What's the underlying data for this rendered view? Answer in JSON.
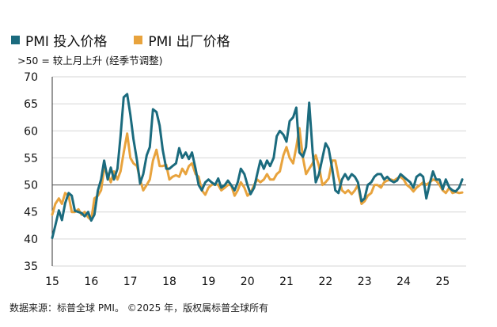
{
  "legend": [
    {
      "label": "PMI 投入价格",
      "color": "#1b6b7e"
    },
    {
      "label": "PMI 出厂价格",
      "color": "#e8a33d"
    }
  ],
  "subtitle": ">50 = 较上月上升 (经季节调整)",
  "source": "数据来源：标普全球 PMI。 ©2025 年，版权属标普全球所有",
  "chart_data": {
    "type": "line",
    "title": "",
    "xlabel": "",
    "ylabel": "",
    "ylim": [
      35,
      70
    ],
    "yticks": [
      35,
      40,
      45,
      50,
      55,
      60,
      65,
      70
    ],
    "xlim": [
      2015.0,
      2025.6
    ],
    "xtick_labels": [
      "15",
      "16",
      "17",
      "18",
      "19",
      "20",
      "21",
      "22",
      "23",
      "24",
      "25"
    ],
    "reference_line": 50,
    "grid": "horizontal",
    "series": [
      {
        "name": "PMI 投入价格",
        "color": "#1b6b7e",
        "x": [
          2015.0,
          2015.08,
          2015.17,
          2015.25,
          2015.33,
          2015.42,
          2015.5,
          2015.58,
          2015.67,
          2015.75,
          2015.83,
          2015.92,
          2016.0,
          2016.08,
          2016.17,
          2016.25,
          2016.33,
          2016.42,
          2016.5,
          2016.58,
          2016.67,
          2016.75,
          2016.83,
          2016.92,
          2017.0,
          2017.08,
          2017.17,
          2017.25,
          2017.33,
          2017.42,
          2017.5,
          2017.58,
          2017.67,
          2017.75,
          2017.83,
          2017.92,
          2018.0,
          2018.08,
          2018.17,
          2018.25,
          2018.33,
          2018.42,
          2018.5,
          2018.58,
          2018.67,
          2018.75,
          2018.83,
          2018.92,
          2019.0,
          2019.08,
          2019.17,
          2019.25,
          2019.33,
          2019.42,
          2019.5,
          2019.58,
          2019.67,
          2019.75,
          2019.83,
          2019.92,
          2020.0,
          2020.08,
          2020.17,
          2020.25,
          2020.33,
          2020.42,
          2020.5,
          2020.58,
          2020.67,
          2020.75,
          2020.83,
          2020.92,
          2021.0,
          2021.08,
          2021.17,
          2021.25,
          2021.33,
          2021.42,
          2021.5,
          2021.58,
          2021.67,
          2021.75,
          2021.83,
          2021.92,
          2022.0,
          2022.08,
          2022.17,
          2022.25,
          2022.33,
          2022.42,
          2022.5,
          2022.58,
          2022.67,
          2022.75,
          2022.83,
          2022.92,
          2023.0,
          2023.08,
          2023.17,
          2023.25,
          2023.33,
          2023.42,
          2023.5,
          2023.58,
          2023.67,
          2023.75,
          2023.83,
          2023.92,
          2024.0,
          2024.08,
          2024.17,
          2024.25,
          2024.33,
          2024.42,
          2024.5,
          2024.58,
          2024.67,
          2024.75,
          2024.83,
          2024.92,
          2025.0,
          2025.08,
          2025.17,
          2025.25,
          2025.33,
          2025.42,
          2025.5
        ],
        "values": [
          40.2,
          42.5,
          45.3,
          43.5,
          46.6,
          48.5,
          48.0,
          45.2,
          45.0,
          44.8,
          44.2,
          45.0,
          43.4,
          44.5,
          49.0,
          51.0,
          54.5,
          51.0,
          53.2,
          51.0,
          53.0,
          59.0,
          66.2,
          66.8,
          63.0,
          58.5,
          54.5,
          50.3,
          52.0,
          55.5,
          57.0,
          64.0,
          63.5,
          61.0,
          56.5,
          53.0,
          53.0,
          53.5,
          54.0,
          56.8,
          55.0,
          56.0,
          54.8,
          56.0,
          53.0,
          50.0,
          49.0,
          50.5,
          51.0,
          50.5,
          50.0,
          51.2,
          49.5,
          50.0,
          50.8,
          50.0,
          49.0,
          50.5,
          53.0,
          52.0,
          50.0,
          48.3,
          49.5,
          52.0,
          54.5,
          53.0,
          54.5,
          53.5,
          55.0,
          59.0,
          60.0,
          59.3,
          58.0,
          61.8,
          62.5,
          64.3,
          56.0,
          55.2,
          57.0,
          65.2,
          56.0,
          50.5,
          52.0,
          55.0,
          57.7,
          56.7,
          53.0,
          49.0,
          48.5,
          51.0,
          52.0,
          51.0,
          52.0,
          51.5,
          50.5,
          47.0,
          47.5,
          50.0,
          50.5,
          51.5,
          52.0,
          52.0,
          51.0,
          51.5,
          50.8,
          50.5,
          50.8,
          52.0,
          51.5,
          51.0,
          50.5,
          49.5,
          51.5,
          52.0,
          51.5,
          47.5,
          50.3,
          52.5,
          51.0,
          51.0,
          49.2,
          51.0,
          49.5,
          49.0,
          48.8,
          49.5,
          51.0
        ]
      },
      {
        "name": "PMI 出厂价格",
        "color": "#e8a33d",
        "x": [
          2015.0,
          2015.08,
          2015.17,
          2015.25,
          2015.33,
          2015.42,
          2015.5,
          2015.58,
          2015.67,
          2015.75,
          2015.83,
          2015.92,
          2016.0,
          2016.08,
          2016.17,
          2016.25,
          2016.33,
          2016.42,
          2016.5,
          2016.58,
          2016.67,
          2016.75,
          2016.83,
          2016.92,
          2017.0,
          2017.08,
          2017.17,
          2017.25,
          2017.33,
          2017.42,
          2017.5,
          2017.58,
          2017.67,
          2017.75,
          2017.83,
          2017.92,
          2018.0,
          2018.08,
          2018.17,
          2018.25,
          2018.33,
          2018.42,
          2018.5,
          2018.58,
          2018.67,
          2018.75,
          2018.83,
          2018.92,
          2019.0,
          2019.08,
          2019.17,
          2019.25,
          2019.33,
          2019.42,
          2019.5,
          2019.58,
          2019.67,
          2019.75,
          2019.83,
          2019.92,
          2020.0,
          2020.08,
          2020.17,
          2020.25,
          2020.33,
          2020.42,
          2020.5,
          2020.58,
          2020.67,
          2020.75,
          2020.83,
          2020.92,
          2021.0,
          2021.08,
          2021.17,
          2021.25,
          2021.33,
          2021.42,
          2021.5,
          2021.58,
          2021.67,
          2021.75,
          2021.83,
          2021.92,
          2022.0,
          2022.08,
          2022.17,
          2022.25,
          2022.33,
          2022.42,
          2022.5,
          2022.58,
          2022.67,
          2022.75,
          2022.83,
          2022.92,
          2023.0,
          2023.08,
          2023.17,
          2023.25,
          2023.33,
          2023.42,
          2023.5,
          2023.58,
          2023.67,
          2023.75,
          2023.83,
          2023.92,
          2024.0,
          2024.08,
          2024.17,
          2024.25,
          2024.33,
          2024.42,
          2024.5,
          2024.58,
          2024.67,
          2024.75,
          2024.83,
          2024.92,
          2025.0,
          2025.08,
          2025.17,
          2025.25,
          2025.33,
          2025.42,
          2025.5
        ],
        "values": [
          44.5,
          46.5,
          47.5,
          46.5,
          48.5,
          48.0,
          45.0,
          45.0,
          45.5,
          44.5,
          45.0,
          44.0,
          43.5,
          47.5,
          48.0,
          49.0,
          53.0,
          52.0,
          50.5,
          52.5,
          51.0,
          52.5,
          56.0,
          59.5,
          55.0,
          54.0,
          53.5,
          51.0,
          49.0,
          50.0,
          51.0,
          54.5,
          56.5,
          53.5,
          53.5,
          53.7,
          51.0,
          51.5,
          51.8,
          51.5,
          53.0,
          52.0,
          53.5,
          54.0,
          52.0,
          51.5,
          49.0,
          48.2,
          49.5,
          50.0,
          50.2,
          50.0,
          49.0,
          49.5,
          50.0,
          50.0,
          48.0,
          49.0,
          50.5,
          49.5,
          48.0,
          48.5,
          50.0,
          51.0,
          50.5,
          51.0,
          52.0,
          51.0,
          51.0,
          52.0,
          52.5,
          55.5,
          57.0,
          55.0,
          54.0,
          57.0,
          60.5,
          55.0,
          52.0,
          53.0,
          54.0,
          55.5,
          53.5,
          50.0,
          50.5,
          51.2,
          54.5,
          54.5,
          51.5,
          49.0,
          48.5,
          49.0,
          48.3,
          49.0,
          50.0,
          46.5,
          47.0,
          48.0,
          48.5,
          50.0,
          50.0,
          49.5,
          50.5,
          50.8,
          51.0,
          50.8,
          51.2,
          51.5,
          51.0,
          50.0,
          49.5,
          48.8,
          49.5,
          50.0,
          50.5,
          50.0,
          50.5,
          51.0,
          50.8,
          50.0,
          49.0,
          48.5,
          49.5,
          48.5,
          48.7,
          48.5,
          48.6
        ]
      }
    ]
  }
}
